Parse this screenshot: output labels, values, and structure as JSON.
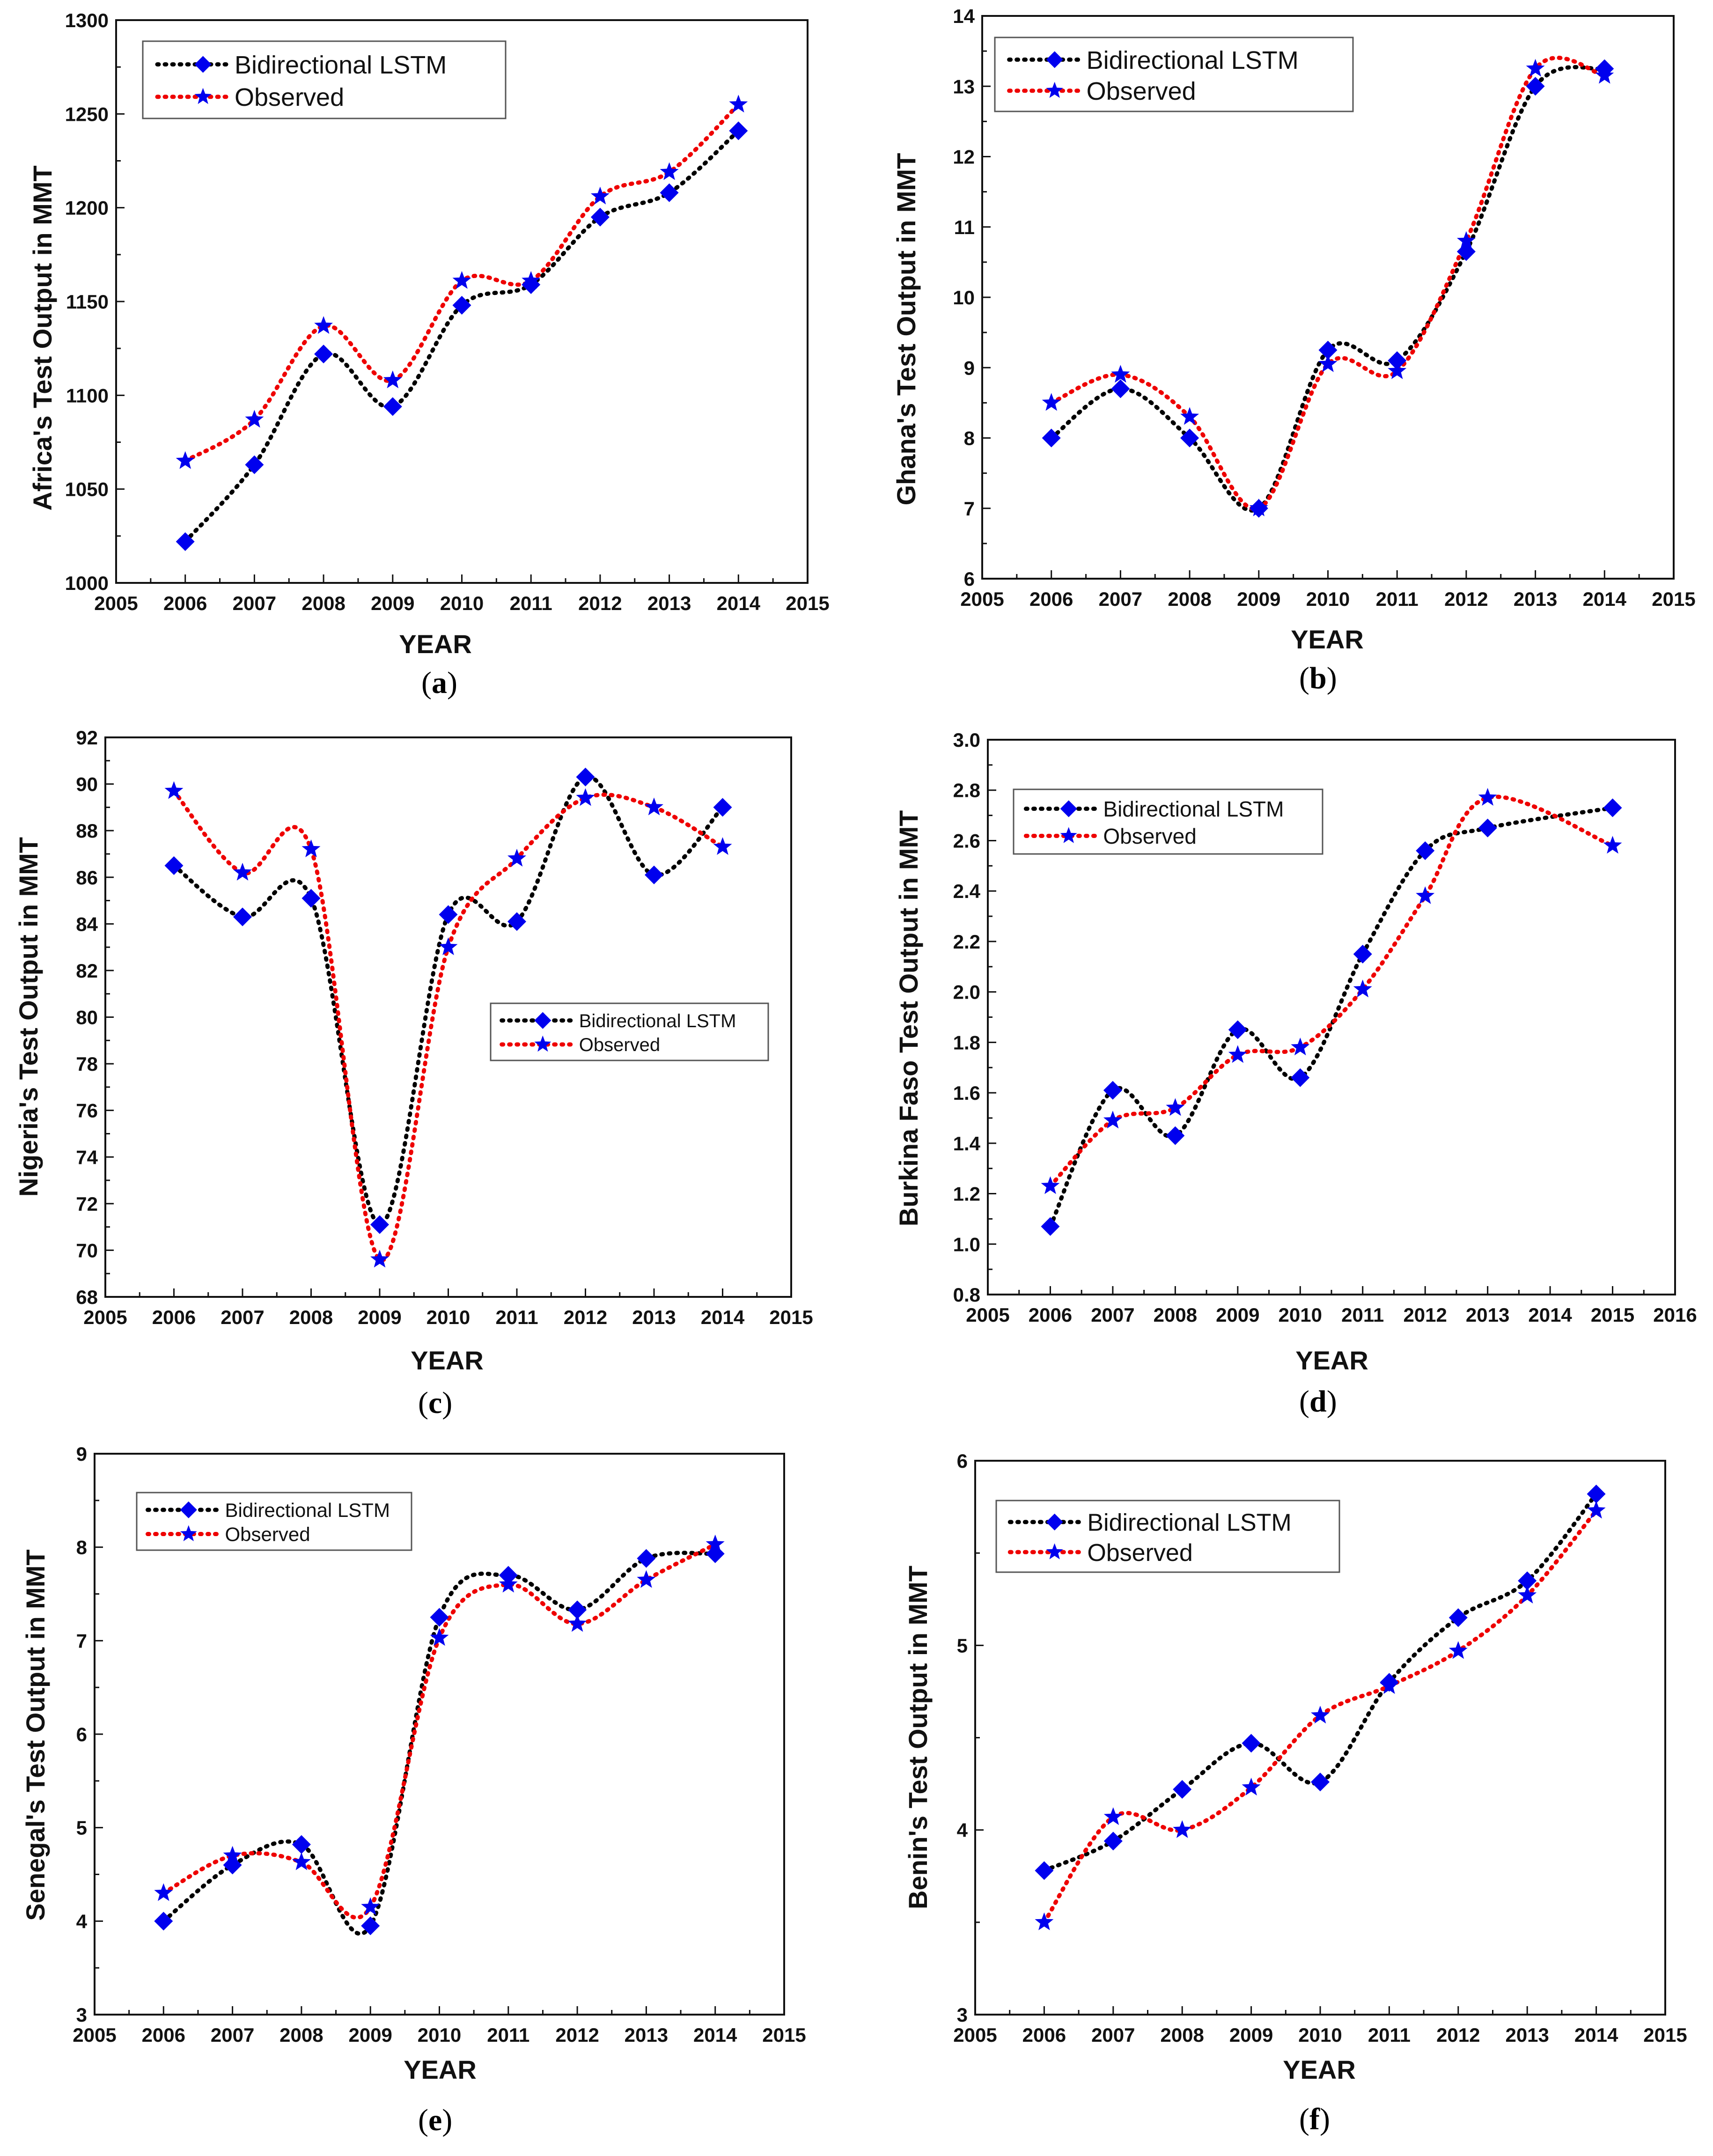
{
  "figure": {
    "panels": [
      {
        "id": "a",
        "caption": {
          "open": "(",
          "letter": "a",
          "close": ")"
        }
      },
      {
        "id": "b",
        "caption": {
          "open": "(",
          "letter": "b",
          "close": ")"
        }
      },
      {
        "id": "c",
        "caption": {
          "open": "(",
          "letter": "c",
          "close": ")"
        }
      },
      {
        "id": "d",
        "caption": {
          "open": "(",
          "letter": "d",
          "close": ")"
        }
      },
      {
        "id": "e",
        "caption": {
          "open": "(",
          "letter": "e",
          "close": ")"
        }
      },
      {
        "id": "f",
        "caption": {
          "open": "(",
          "letter": "f",
          "close": ")"
        }
      }
    ]
  },
  "colors": {
    "bilstm": "#0000ee",
    "bilstm_curve": "#000000",
    "observed_marker": "#0000ee",
    "observed_curve": "#ee0000",
    "axis": "#111111"
  },
  "chart_data": [
    {
      "panel": "a",
      "type": "line",
      "title": "",
      "xlabel": "YEAR",
      "ylabel": "Africa's Test Output in MMT",
      "xlim": [
        2005,
        2015
      ],
      "ylim": [
        1000,
        1300
      ],
      "xticks": [
        2005,
        2006,
        2007,
        2008,
        2009,
        2010,
        2011,
        2012,
        2013,
        2014,
        2015
      ],
      "yticks": [
        "1000",
        "1050",
        "1100",
        "1150",
        "1200",
        "1250",
        "1300"
      ],
      "legend": "top-left",
      "x": [
        2006,
        2007,
        2008,
        2009,
        2010,
        2011,
        2012,
        2013,
        2014
      ],
      "series": [
        {
          "name": "Bidirectional LSTM",
          "marker": "diamond",
          "values": [
            1022,
            1063,
            1122,
            1094,
            1148,
            1159,
            1195,
            1208,
            1241
          ]
        },
        {
          "name": "Observed",
          "marker": "star",
          "values": [
            1065,
            1087,
            1137,
            1108,
            1161,
            1161,
            1206,
            1219,
            1255
          ]
        }
      ]
    },
    {
      "panel": "b",
      "type": "line",
      "title": "",
      "xlabel": "YEAR",
      "ylabel": "Ghana's Test Output in MMT",
      "xlim": [
        2005,
        2015
      ],
      "ylim": [
        6,
        14
      ],
      "xticks": [
        2005,
        2006,
        2007,
        2008,
        2009,
        2010,
        2011,
        2012,
        2013,
        2014,
        2015
      ],
      "yticks": [
        "6",
        "7",
        "8",
        "9",
        "10",
        "11",
        "12",
        "13",
        "14"
      ],
      "legend": "top-left",
      "x": [
        2006,
        2007,
        2008,
        2009,
        2010,
        2011,
        2012,
        2013,
        2014
      ],
      "series": [
        {
          "name": "Bidirectional LSTM",
          "marker": "diamond",
          "values": [
            8.0,
            8.7,
            8.0,
            7.0,
            9.25,
            9.1,
            10.65,
            13.0,
            13.25
          ]
        },
        {
          "name": "Observed",
          "marker": "star",
          "values": [
            8.5,
            8.9,
            8.3,
            7.0,
            9.05,
            8.95,
            10.8,
            13.25,
            13.15
          ]
        }
      ]
    },
    {
      "panel": "c",
      "type": "line",
      "title": "",
      "xlabel": "YEAR",
      "ylabel": "Nigeria's Test Output in MMT",
      "xlim": [
        2005,
        2015
      ],
      "ylim": [
        68,
        92
      ],
      "xticks": [
        2005,
        2006,
        2007,
        2008,
        2009,
        2010,
        2011,
        2012,
        2013,
        2014,
        2015
      ],
      "yticks": [
        "68",
        "70",
        "72",
        "74",
        "76",
        "78",
        "80",
        "82",
        "84",
        "86",
        "88",
        "90",
        "92"
      ],
      "legend": "middle-right",
      "x": [
        2006,
        2007,
        2008,
        2009,
        2010,
        2011,
        2012,
        2013,
        2014
      ],
      "series": [
        {
          "name": "Bidirectional LSTM",
          "marker": "diamond",
          "values": [
            86.5,
            84.3,
            85.1,
            71.1,
            84.4,
            84.1,
            90.3,
            86.1,
            89.0
          ]
        },
        {
          "name": "Observed",
          "marker": "star",
          "values": [
            89.7,
            86.2,
            87.2,
            69.6,
            83.0,
            86.8,
            89.4,
            89.0,
            87.3
          ]
        }
      ]
    },
    {
      "panel": "d",
      "type": "line",
      "title": "",
      "xlabel": "YEAR",
      "ylabel": "Burkina Faso Test Output in MMT",
      "xlim": [
        2005,
        2016
      ],
      "ylim": [
        0.8,
        3.0
      ],
      "xticks": [
        2005,
        2006,
        2007,
        2008,
        2009,
        2010,
        2011,
        2012,
        2013,
        2014,
        2015,
        2016
      ],
      "yticks": [
        "0.8",
        "1.0",
        "1.2",
        "1.4",
        "1.6",
        "1.8",
        "2.0",
        "2.2",
        "2.4",
        "2.6",
        "2.8",
        "3.0"
      ],
      "legend": "top-left",
      "x": [
        2006,
        2007,
        2008,
        2009,
        2010,
        2011,
        2012,
        2013,
        2015
      ],
      "series": [
        {
          "name": "Bidirectional LSTM",
          "marker": "diamond",
          "values": [
            1.07,
            1.61,
            1.43,
            1.85,
            1.66,
            2.15,
            2.56,
            2.65,
            2.73
          ]
        },
        {
          "name": "Observed",
          "marker": "star",
          "values": [
            1.23,
            1.49,
            1.54,
            1.75,
            1.78,
            2.01,
            2.38,
            2.77,
            2.58
          ]
        }
      ]
    },
    {
      "panel": "e",
      "type": "line",
      "title": "",
      "xlabel": "YEAR",
      "ylabel": "Senegal's Test Output in MMT",
      "xlim": [
        2005,
        2015
      ],
      "ylim": [
        3,
        9
      ],
      "xticks": [
        2005,
        2006,
        2007,
        2008,
        2009,
        2010,
        2011,
        2012,
        2013,
        2014,
        2015
      ],
      "yticks": [
        "3",
        "4",
        "5",
        "6",
        "7",
        "8",
        "9"
      ],
      "legend": "top-left",
      "x": [
        2006,
        2007,
        2008,
        2009,
        2010,
        2011,
        2012,
        2013,
        2014
      ],
      "series": [
        {
          "name": "Bidirectional LSTM",
          "marker": "diamond",
          "values": [
            4.0,
            4.6,
            4.82,
            3.95,
            7.25,
            7.7,
            7.33,
            7.88,
            7.93
          ]
        },
        {
          "name": "Observed",
          "marker": "star",
          "values": [
            4.3,
            4.7,
            4.63,
            4.15,
            7.03,
            7.6,
            7.18,
            7.65,
            8.03
          ]
        }
      ]
    },
    {
      "panel": "f",
      "type": "line",
      "title": "",
      "xlabel": "YEAR",
      "ylabel": "Benin's Test Output in MMT",
      "xlim": [
        2005,
        2015
      ],
      "ylim": [
        3,
        6
      ],
      "xticks": [
        2005,
        2006,
        2007,
        2008,
        2009,
        2010,
        2011,
        2012,
        2013,
        2014,
        2015
      ],
      "yticks": [
        "3",
        "4",
        "5",
        "6"
      ],
      "legend": "top-left",
      "x": [
        2006,
        2007,
        2008,
        2009,
        2010,
        2011,
        2012,
        2013,
        2014
      ],
      "series": [
        {
          "name": "Bidirectional LSTM",
          "marker": "diamond",
          "values": [
            3.78,
            3.94,
            4.22,
            4.47,
            4.26,
            4.8,
            5.15,
            5.35,
            5.82
          ]
        },
        {
          "name": "Observed",
          "marker": "star",
          "values": [
            3.5,
            4.07,
            4.0,
            4.23,
            4.62,
            4.78,
            4.97,
            5.27,
            5.73
          ]
        }
      ]
    }
  ]
}
